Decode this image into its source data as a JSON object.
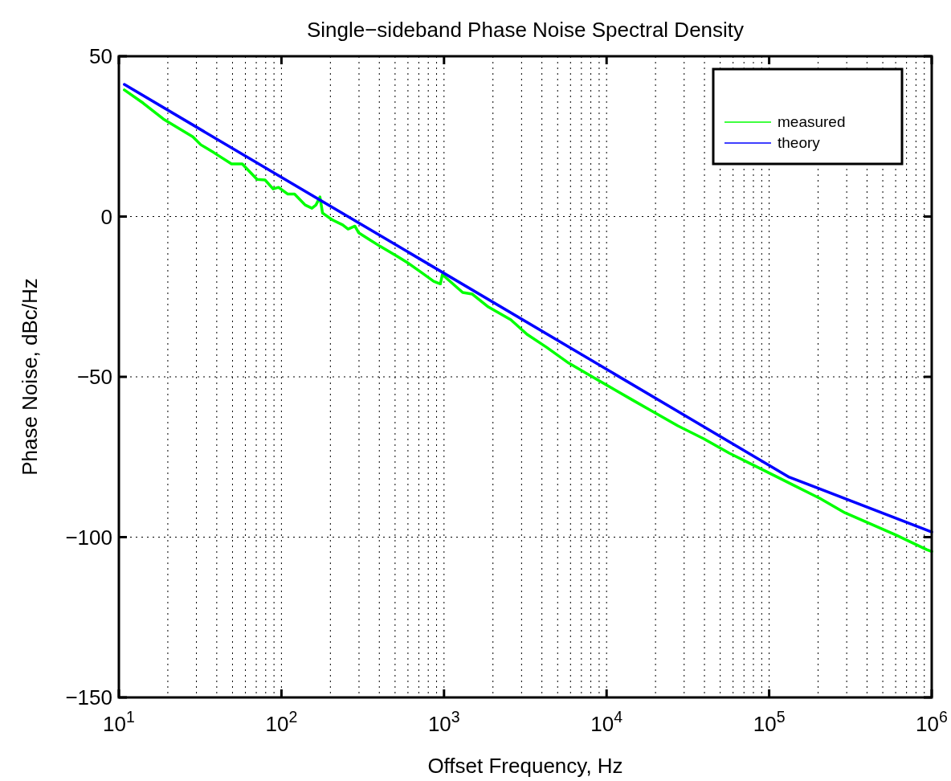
{
  "chart_data": {
    "type": "line",
    "title": "Single−sideband Phase Noise Spectral Density",
    "xlabel": "Offset Frequency, Hz",
    "ylabel": "Phase Noise, dBc/Hz",
    "log": "x",
    "grid": true,
    "legend": "top right",
    "line_style": "solid",
    "marker": "none",
    "xlim": [
      10,
      1000000
    ],
    "xticks": [
      {
        "value": 10,
        "label": "10$^{1}$"
      },
      {
        "value": 100,
        "label": "10$^{2}$"
      },
      {
        "value": 1000,
        "label": "10$^{3}$"
      },
      {
        "value": 10000,
        "label": "10$^{4}$"
      },
      {
        "value": 100000,
        "label": "10$^{5}$"
      },
      {
        "value": 1000000,
        "label": "10$^{6}$"
      }
    ],
    "ylim": [
      -150,
      50
    ],
    "yticks": [
      {
        "value": -150,
        "label": "−150"
      },
      {
        "value": -100,
        "label": "−100"
      },
      {
        "value": -50,
        "label": "−50"
      },
      0,
      50
    ],
    "series": [
      {
        "name": "measured",
        "color": "#00ff00",
        "x": [
          10.8,
          14.1,
          18.8,
          28.5,
          31.9,
          38.5,
          49.3,
          57.4,
          70.8,
          79.3,
          88.9,
          95.9,
          109.5,
          120.4,
          140,
          154,
          163,
          172.5,
          179,
          205,
          238,
          257,
          283,
          299,
          348,
          405,
          508,
          592,
          715,
          864,
          950,
          977,
          1303,
          1494,
          1875,
          2578,
          3236,
          4250,
          5844,
          7674,
          11040,
          14520,
          19950,
          27470,
          39540,
          56890,
          81850,
          107600,
          141300,
          203200,
          292500,
          421700,
          606700,
          933000,
          1000000
        ],
        "values": [
          39.5,
          35.4,
          30.4,
          24.9,
          22.4,
          19.9,
          16.4,
          16.4,
          11.6,
          11.4,
          8.6,
          9.1,
          7.0,
          7.0,
          3.6,
          2.6,
          3.6,
          6.1,
          1.1,
          -1.0,
          -2.6,
          -3.9,
          -3.0,
          -5.1,
          -7.2,
          -9.3,
          -12.2,
          -14.3,
          -17.2,
          -20.2,
          -21.0,
          -18.1,
          -23.7,
          -24.2,
          -28.2,
          -32.2,
          -36.7,
          -40.7,
          -45.7,
          -49.2,
          -53.8,
          -57.3,
          -61.3,
          -65.3,
          -69.3,
          -73.8,
          -77.8,
          -80.8,
          -83.8,
          -87.8,
          -92.4,
          -95.9,
          -99.4,
          -103.9,
          -104.5
        ]
      },
      {
        "name": "theory",
        "color": "#0000ff",
        "x": [
          10.8,
          133000,
          1000000
        ],
        "values": [
          41.2,
          -81.3,
          -98.4
        ]
      }
    ]
  }
}
